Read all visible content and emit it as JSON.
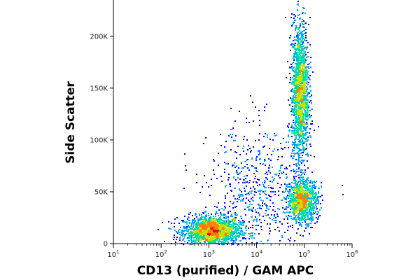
{
  "chart_data": {
    "type": "scatter",
    "subtype": "flow-cytometry-density-dot-plot",
    "xlabel": "CD13 (purified) / GAM APC",
    "ylabel": "Side Scatter",
    "x_scale": "log",
    "xlim": [
      10,
      1000000
    ],
    "ylim": [
      0,
      235000
    ],
    "x_ticks": [
      {
        "base": "10",
        "exp": "1",
        "value": 10
      },
      {
        "base": "10",
        "exp": "2",
        "value": 100
      },
      {
        "base": "10",
        "exp": "3",
        "value": 1000
      },
      {
        "base": "10",
        "exp": "4",
        "value": 10000
      },
      {
        "base": "10",
        "exp": "5",
        "value": 100000
      },
      {
        "base": "10",
        "exp": "6",
        "value": 1000000
      }
    ],
    "y_ticks": [
      {
        "label": "0",
        "value": 0
      },
      {
        "label": "50K",
        "value": 50000
      },
      {
        "label": "100K",
        "value": 100000
      },
      {
        "label": "150K",
        "value": 150000
      },
      {
        "label": "200K",
        "value": 200000
      }
    ],
    "grid": false,
    "legend": "none",
    "color_scale": [
      "#0000ff",
      "#00a0ff",
      "#00e0a0",
      "#c8e000",
      "#ff8000",
      "#ff0000"
    ],
    "populations": [
      {
        "x_log10_center": 3.05,
        "y_center": 13000,
        "x_log10_sd": 0.3,
        "y_sd": 7000,
        "share": 0.34
      },
      {
        "x_log10_center": 4.9,
        "y_center": 145000,
        "x_log10_sd": 0.09,
        "y_sd": 35000,
        "share": 0.33
      },
      {
        "x_log10_center": 4.95,
        "y_center": 42000,
        "x_log10_sd": 0.16,
        "y_sd": 10000,
        "share": 0.2
      },
      {
        "x_log10_center": 4.0,
        "y_center": 45000,
        "x_log10_sd": 0.5,
        "y_sd": 35000,
        "share": 0.13
      }
    ]
  }
}
